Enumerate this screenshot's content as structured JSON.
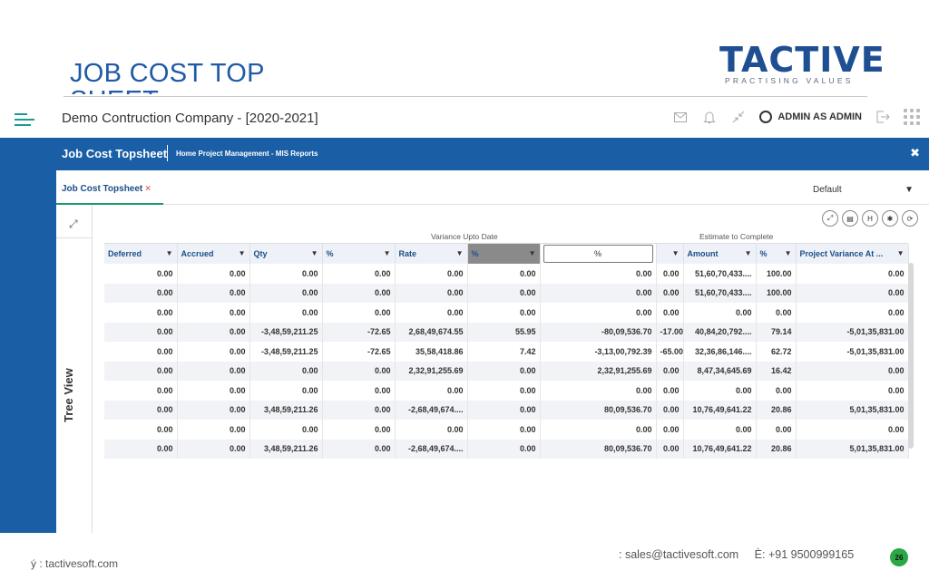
{
  "slide": {
    "title_line1": "JOB COST TOP",
    "title_line2": "SHEET",
    "logo_word": "TACTIVE",
    "logo_tagline": "PRACTISING VALUES",
    "footer_web": "ý : tactivesoft.com",
    "footer_email": ": sales@tactivesoft.com",
    "footer_phone": "È: +91 9500999165",
    "page_number": "26",
    "accent_color": "#1f5aa6",
    "page_badge_color": "#2aa845"
  },
  "appbar": {
    "company": "Demo Contruction Company - [2020-2021]",
    "user": "ADMIN AS ADMIN",
    "icons": [
      "menu-icon",
      "mail-icon",
      "bell-icon",
      "compress-icon",
      "user-icon",
      "logout-icon",
      "apps-grid-icon"
    ]
  },
  "panel": {
    "title": "Job Cost Topsheet",
    "breadcrumb": "Home Project Management - MIS Reports",
    "tab_label": "Job Cost Topsheet",
    "tab_close": "×",
    "view_select": "Default",
    "tree_label": "Tree View",
    "header_color": "#1a5ea6"
  },
  "grid": {
    "group_headers": {
      "variance": "Variance Upto Date",
      "estimate": "Estimate to Complete"
    },
    "columns": [
      "Deferred",
      "Accrued",
      "Qty",
      "%",
      "Rate",
      "%",
      "%",
      "",
      "Amount",
      "%",
      "Project Variance At ..."
    ],
    "filter_input_value": "%",
    "rows": [
      [
        "0.00",
        "0.00",
        "0.00",
        "0.00",
        "0.00",
        "0.00",
        "0.00",
        "0.00",
        "51,60,70,433....",
        "100.00",
        "0.00"
      ],
      [
        "0.00",
        "0.00",
        "0.00",
        "0.00",
        "0.00",
        "0.00",
        "0.00",
        "0.00",
        "51,60,70,433....",
        "100.00",
        "0.00"
      ],
      [
        "0.00",
        "0.00",
        "0.00",
        "0.00",
        "0.00",
        "0.00",
        "0.00",
        "0.00",
        "0.00",
        "0.00",
        "0.00"
      ],
      [
        "0.00",
        "0.00",
        "-3,48,59,211.25",
        "-72.65",
        "2,68,49,674.55",
        "55.95",
        "-80,09,536.70",
        "-17.00",
        "40,84,20,792....",
        "79.14",
        "-5,01,35,831.00"
      ],
      [
        "0.00",
        "0.00",
        "-3,48,59,211.25",
        "-72.65",
        "35,58,418.86",
        "7.42",
        "-3,13,00,792.39",
        "-65.00",
        "32,36,86,146....",
        "62.72",
        "-5,01,35,831.00"
      ],
      [
        "0.00",
        "0.00",
        "0.00",
        "0.00",
        "2,32,91,255.69",
        "0.00",
        "2,32,91,255.69",
        "0.00",
        "8,47,34,645.69",
        "16.42",
        "0.00"
      ],
      [
        "0.00",
        "0.00",
        "0.00",
        "0.00",
        "0.00",
        "0.00",
        "0.00",
        "0.00",
        "0.00",
        "0.00",
        "0.00"
      ],
      [
        "0.00",
        "0.00",
        "3,48,59,211.26",
        "0.00",
        "-2,68,49,674....",
        "0.00",
        "80,09,536.70",
        "0.00",
        "10,76,49,641.22",
        "20.86",
        "5,01,35,831.00"
      ],
      [
        "0.00",
        "0.00",
        "0.00",
        "0.00",
        "0.00",
        "0.00",
        "0.00",
        "0.00",
        "0.00",
        "0.00",
        "0.00"
      ],
      [
        "0.00",
        "0.00",
        "3,48,59,211.26",
        "0.00",
        "-2,68,49,674....",
        "0.00",
        "80,09,536.70",
        "0.00",
        "10,76,49,641.22",
        "20.86",
        "5,01,35,831.00"
      ]
    ]
  }
}
